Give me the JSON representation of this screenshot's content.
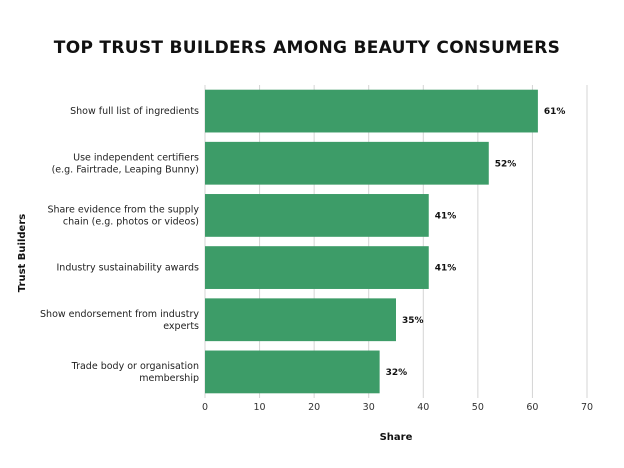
{
  "chart_data": {
    "type": "bar",
    "orientation": "horizontal",
    "title": "TOP TRUST BUILDERS AMONG BEAUTY CONSUMERS",
    "xlabel": "Share",
    "ylabel": "Trust Builders",
    "xlim": [
      0,
      70
    ],
    "xticks": [
      0,
      10,
      20,
      30,
      40,
      50,
      60,
      70
    ],
    "grid": "vertical",
    "bar_color": "#3d9c68",
    "categories": [
      [
        "Show full list of ingredients"
      ],
      [
        "Use independent certifiers",
        "(e.g. Fairtrade, Leaping Bunny)"
      ],
      [
        "Share evidence from the supply",
        "chain (e.g. photos or videos)"
      ],
      [
        "Industry sustainability awards"
      ],
      [
        "Show endorsement from industry",
        "experts"
      ],
      [
        "Trade body or organisation",
        "membership"
      ]
    ],
    "values": [
      61,
      52,
      41,
      41,
      35,
      32
    ],
    "value_labels": [
      "61%",
      "52%",
      "41%",
      "41%",
      "35%",
      "32%"
    ]
  }
}
